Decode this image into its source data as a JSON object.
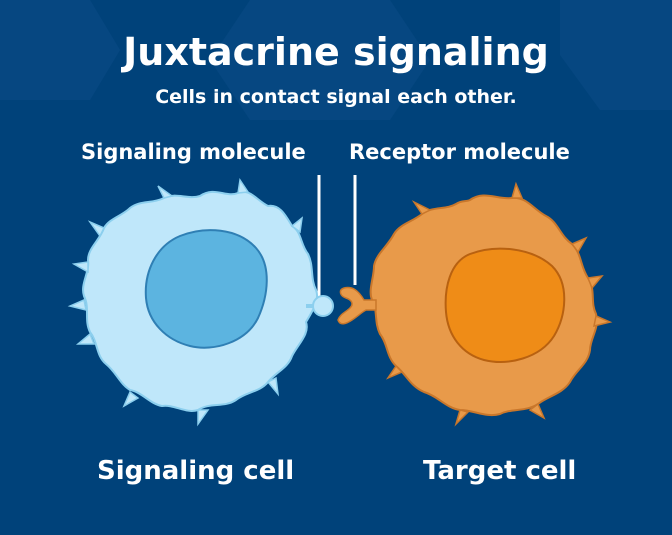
{
  "title": "Juxtacrine signaling",
  "subtitle": "Cells in contact signal each other.",
  "labels": {
    "signaling_molecule": "Signaling molecule",
    "receptor_molecule": "Receptor molecule",
    "signaling_cell": "Signaling cell",
    "target_cell": "Target cell"
  },
  "colors": {
    "background": "#00427a",
    "background_pattern": "#0b4d86",
    "signaling_cell_body": "#bfe7fa",
    "signaling_cell_outline": "#8ccfee",
    "signaling_nucleus": "#5cb4e0",
    "signaling_nucleus_outline": "#2f7fb4",
    "target_cell_body": "#e89a4a",
    "target_cell_outline": "#c9772b",
    "target_nucleus": "#ef8c17",
    "target_nucleus_outline": "#b86110",
    "molecule": "#bfe7fa",
    "leader_line": "#ffffff"
  }
}
